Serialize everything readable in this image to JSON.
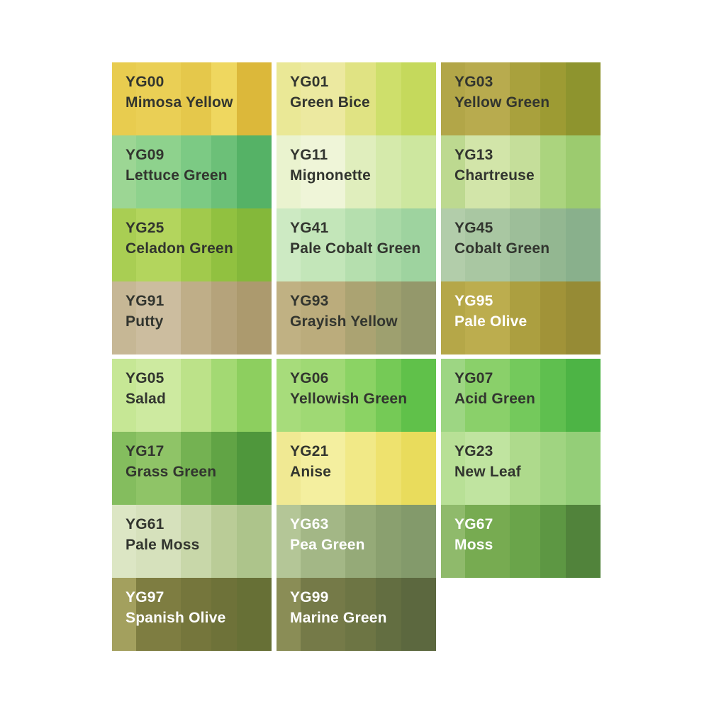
{
  "page": {
    "background": "#ffffff",
    "family": "YG",
    "label_color_dark": "#32352f",
    "label_color_light": "#ffffff"
  },
  "band_widths_pct": [
    15,
    28,
    19,
    16,
    22
  ],
  "grid": {
    "rows": [
      {
        "cells": [
          {
            "code": "YG00",
            "name": "Mimosa Yellow",
            "text": "dark",
            "bands": [
              "#e8cc4f",
              "#eacf55",
              "#e5c84b",
              "#efd75f",
              "#dcb83a"
            ]
          },
          {
            "code": "YG01",
            "name": "Green Bice",
            "text": "dark",
            "bands": [
              "#eae896",
              "#ece9a0",
              "#e0e383",
              "#cedf6b",
              "#c5d95c"
            ]
          },
          {
            "code": "YG03",
            "name": "Yellow Green",
            "text": "dark",
            "bands": [
              "#b2a648",
              "#b8ab4e",
              "#a9a13d",
              "#9d9b33",
              "#8e942e"
            ]
          }
        ]
      },
      {
        "cells": [
          {
            "code": "YG09",
            "name": "Lettuce Green",
            "text": "dark",
            "bands": [
              "#9cd694",
              "#8ed28d",
              "#7cca84",
              "#6cc078",
              "#55b266"
            ]
          },
          {
            "code": "YG11",
            "name": "Mignonette",
            "text": "dark",
            "bands": [
              "#eaf3cf",
              "#eff5d8",
              "#e0eebd",
              "#d5eaab",
              "#cde79f"
            ]
          },
          {
            "code": "YG13",
            "name": "Chartreuse",
            "text": "dark",
            "bands": [
              "#bdd990",
              "#d2e5a9",
              "#c5de9a",
              "#abd47e",
              "#9ccb6f"
            ]
          }
        ]
      },
      {
        "cells": [
          {
            "code": "YG25",
            "name": "Celadon Green",
            "text": "dark",
            "bands": [
              "#a9ce53",
              "#b3d55d",
              "#a1ca4c",
              "#91c140",
              "#84b83a"
            ]
          },
          {
            "code": "YG41",
            "name": "Pale Cobalt Green",
            "text": "dark",
            "bands": [
              "#cdeac3",
              "#c3e6b9",
              "#b5dfae",
              "#a9d9a6",
              "#9ed39f"
            ]
          },
          {
            "code": "YG45",
            "name": "Cobalt Green",
            "text": "dark",
            "bands": [
              "#b2cdaa",
              "#a9c7a2",
              "#9dbe99",
              "#93b791",
              "#89b08c"
            ]
          }
        ]
      },
      {
        "cells": [
          {
            "code": "YG91",
            "name": "Putty",
            "text": "dark",
            "bands": [
              "#c6b795",
              "#ccbd9f",
              "#bfae88",
              "#b5a37b",
              "#ac9a6e"
            ]
          },
          {
            "code": "YG93",
            "name": "Grayish Yellow",
            "text": "dark",
            "bands": [
              "#c0b183",
              "#bbac7c",
              "#aba372",
              "#9ea06f",
              "#94986b"
            ]
          },
          {
            "code": "YG95",
            "name": "Pale Olive",
            "text": "light",
            "bands": [
              "#b5a748",
              "#bcad4e",
              "#ac9f40",
              "#a19338",
              "#968b35"
            ]
          }
        ]
      },
      {
        "cells": [
          {
            "code": "YG05",
            "name": "Salad",
            "text": "dark",
            "bands": [
              "#c6e795",
              "#cdeaa0",
              "#bce289",
              "#a3d973",
              "#8dcf5f"
            ]
          },
          {
            "code": "YG06",
            "name": "Yellowish Green",
            "text": "dark",
            "bands": [
              "#a7dc7b",
              "#9fd974",
              "#8bd364",
              "#75ca56",
              "#60c14a"
            ]
          },
          {
            "code": "YG07",
            "name": "Acid Green",
            "text": "dark",
            "bands": [
              "#9dd683",
              "#8ad06a",
              "#74c95c",
              "#5fbf4f",
              "#4db445"
            ]
          }
        ]
      },
      {
        "cells": [
          {
            "code": "YG17",
            "name": "Grass Green",
            "text": "dark",
            "bands": [
              "#84bd5e",
              "#8fc467",
              "#74b252",
              "#61a445",
              "#4f973c"
            ]
          },
          {
            "code": "YG21",
            "name": "Anise",
            "text": "dark",
            "bands": [
              "#f0e993",
              "#f4ef9f",
              "#f1e987",
              "#eee26e",
              "#e9dc5c"
            ]
          },
          {
            "code": "YG23",
            "name": "New Leaf",
            "text": "dark",
            "bands": [
              "#b8e096",
              "#c0e4a0",
              "#aeda8c",
              "#a0d481",
              "#94ce78"
            ]
          }
        ]
      },
      {
        "cells": [
          {
            "code": "YG61",
            "name": "Pale Moss",
            "text": "dark",
            "bands": [
              "#dce6c4",
              "#d6e1bc",
              "#c8d7a9",
              "#bacc97",
              "#adc48b"
            ]
          },
          {
            "code": "YG63",
            "name": "Pea Green",
            "text": "light",
            "bands": [
              "#b4c697",
              "#a3b786",
              "#95aa78",
              "#8aa06f",
              "#839a6b"
            ]
          },
          {
            "code": "YG67",
            "name": "Moss",
            "text": "light",
            "bands": [
              "#8fba6b",
              "#77ab51",
              "#6aa44a",
              "#5d9743",
              "#51833b"
            ]
          }
        ]
      },
      {
        "cells": [
          {
            "code": "YG97",
            "name": "Spanish Olive",
            "text": "light",
            "bands": [
              "#a3a05e",
              "#7e7d41",
              "#75763c",
              "#6e7239",
              "#677036"
            ]
          },
          {
            "code": "YG99",
            "name": "Marine Green",
            "text": "light",
            "bands": [
              "#8a8d56",
              "#757a48",
              "#6d7544",
              "#636e41",
              "#5c683f"
            ]
          }
        ]
      }
    ]
  }
}
